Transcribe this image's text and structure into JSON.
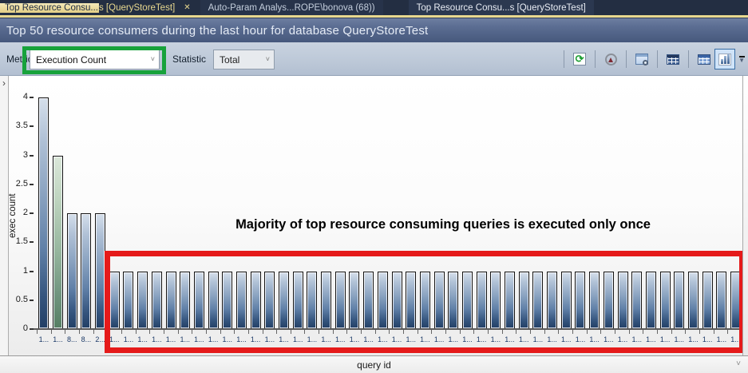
{
  "tabs": {
    "active": {
      "full_label": "Top Resource Consu...s [QueryStoreTest]",
      "part1": "Top Resource Consu...",
      "part2": "s [QueryStoreTest]",
      "close": "✕"
    },
    "tab2": {
      "label": "Auto-Param Analys...ROPE\\bonova (68))"
    },
    "tab3": {
      "label": "Top Resource Consu...s [QueryStoreTest]"
    }
  },
  "header": {
    "title": "Top 50 resource consumers during the last hour for database QueryStoreTest"
  },
  "toolbar": {
    "metric_label": "Metric",
    "metric_value": "Execution Count",
    "statistic_label": "Statistic",
    "statistic_value": "Total",
    "combo_chevron": "˅",
    "icons": [
      "refresh-icon",
      "track-query-icon",
      "view-query-text-icon",
      "grid-results-icon",
      "grid-details-icon",
      "bar-chart-view-icon"
    ],
    "selected_icon": "bar-chart-view-icon",
    "highlight_box_color": "#17A23B"
  },
  "panel": {
    "collapse_chevron": "›"
  },
  "chart_data": {
    "type": "bar",
    "title": "",
    "ylabel": "exec count",
    "xlabel": "query id",
    "ylim": [
      0,
      4
    ],
    "ytick_labels": [
      "4",
      "3.5",
      "3",
      "2.5",
      "2",
      "1.5",
      "1",
      "0.5",
      "0"
    ],
    "categories": [
      "1...",
      "1...",
      "8...",
      "8...",
      "2...",
      "1...",
      "1...",
      "1...",
      "1...",
      "1...",
      "1...",
      "1...",
      "1...",
      "1...",
      "1...",
      "1...",
      "1...",
      "1...",
      "1...",
      "1...",
      "1...",
      "1...",
      "1...",
      "1...",
      "1...",
      "1...",
      "1...",
      "1...",
      "1...",
      "1...",
      "1...",
      "1...",
      "1...",
      "1...",
      "1...",
      "1...",
      "1...",
      "1...",
      "1...",
      "1...",
      "1...",
      "1...",
      "1...",
      "1...",
      "1...",
      "1...",
      "1...",
      "1...",
      "1...",
      "1..."
    ],
    "values": [
      4,
      3,
      2,
      2,
      2,
      1,
      1,
      1,
      1,
      1,
      1,
      1,
      1,
      1,
      1,
      1,
      1,
      1,
      1,
      1,
      1,
      1,
      1,
      1,
      1,
      1,
      1,
      1,
      1,
      1,
      1,
      1,
      1,
      1,
      1,
      1,
      1,
      1,
      1,
      1,
      1,
      1,
      1,
      1,
      1,
      1,
      1,
      1,
      1,
      1
    ],
    "green_bar_index": 1,
    "bar_color_blue": "#35557E",
    "bar_color_green": "#557E63",
    "grid": false,
    "legend": false,
    "annotation": "Majority of top resource consuming queries is executed only once",
    "annotation_box_color": "#E51A1A"
  },
  "xaxis_selector": {
    "value": "query id",
    "chevron": "˅"
  }
}
